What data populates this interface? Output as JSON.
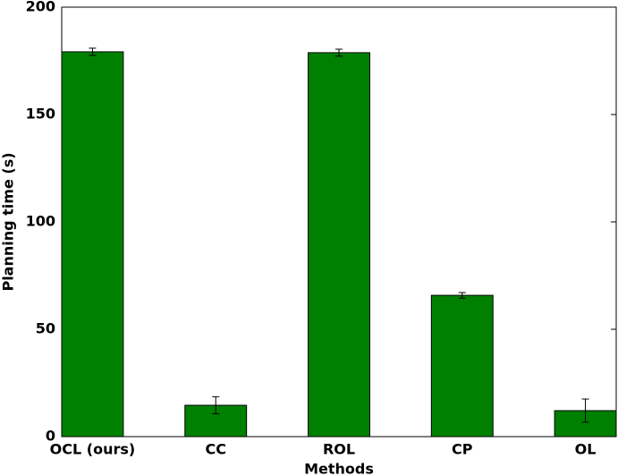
{
  "chart_data": {
    "type": "bar",
    "x_label": "Methods",
    "y_label": "Planning time (s)",
    "categories": [
      "OCL (ours)",
      "CC",
      "ROL",
      "CP",
      "OL"
    ],
    "values": [
      179.2,
      14.6,
      178.8,
      65.8,
      12.1
    ],
    "errors": [
      1.7,
      4.0,
      1.6,
      1.3,
      5.4
    ],
    "color": "#008000",
    "ylim": [
      0,
      200
    ],
    "yticks": [
      0,
      50,
      100,
      150,
      200
    ]
  }
}
